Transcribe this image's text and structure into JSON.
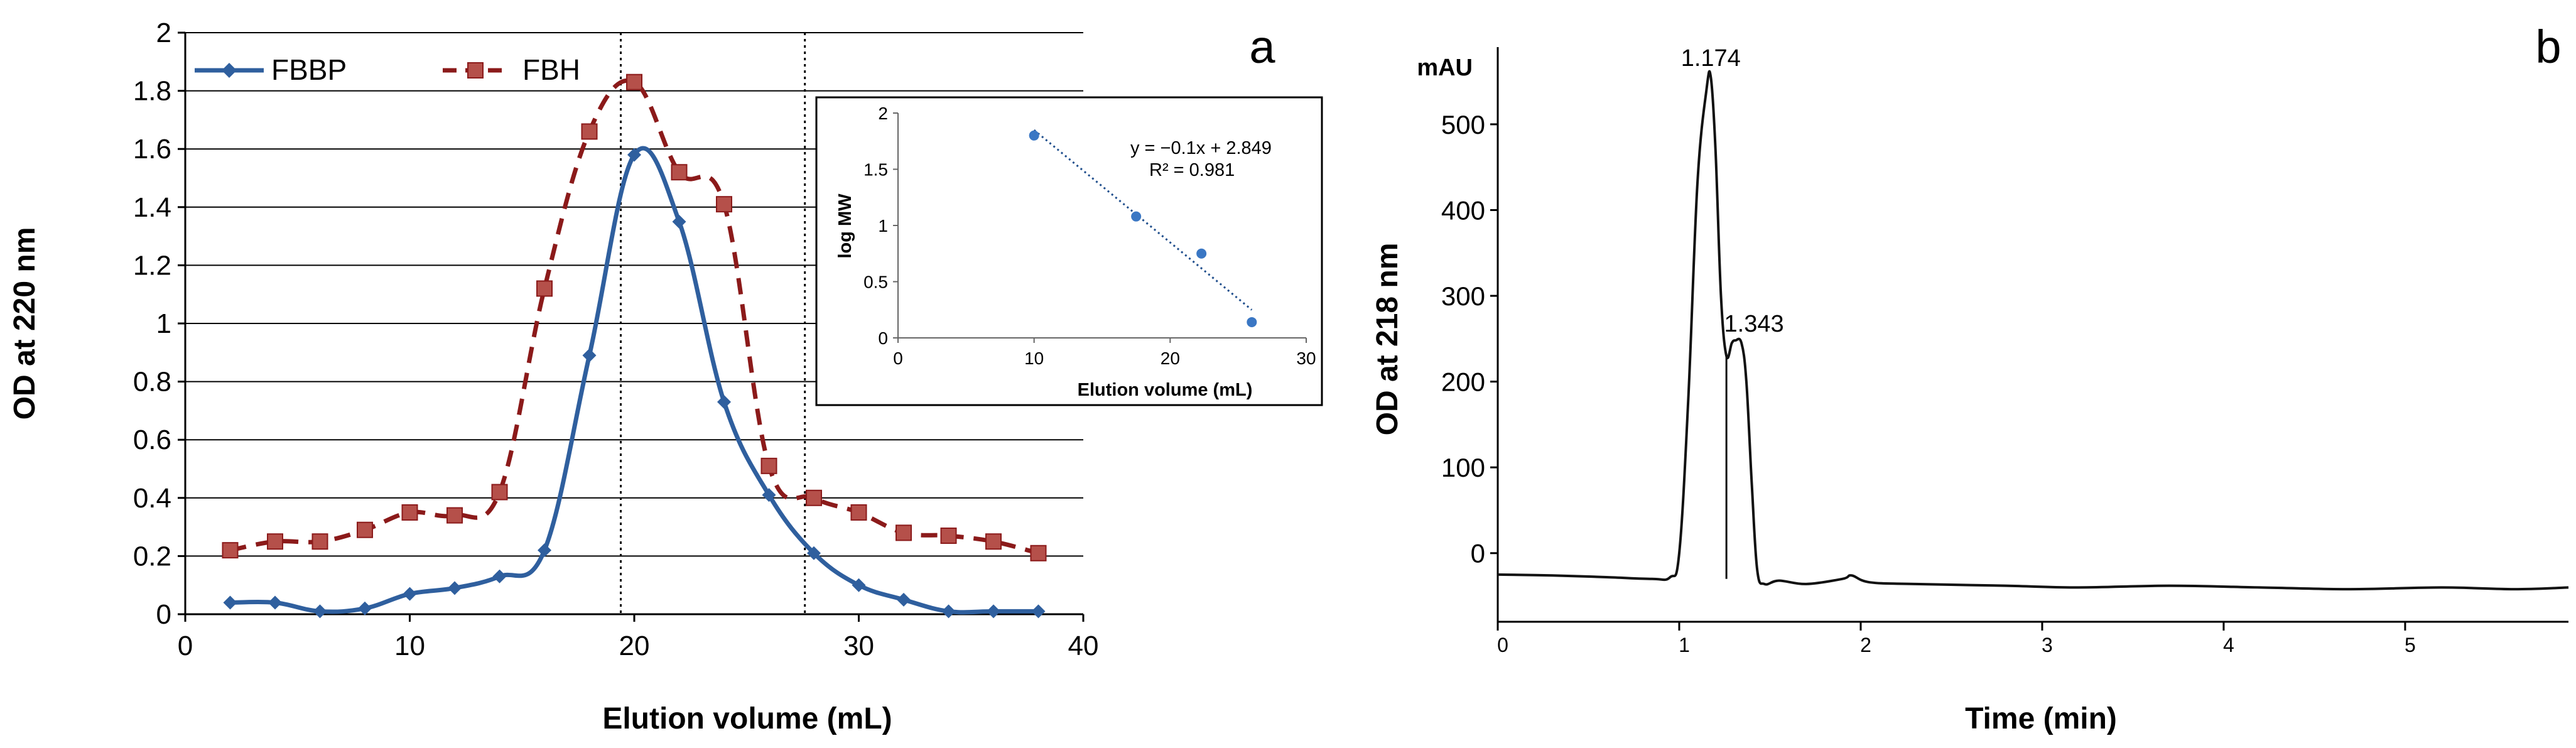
{
  "panels": {
    "a": {
      "label": "a"
    },
    "b": {
      "label": "b"
    }
  },
  "colors": {
    "fbbp": "#2F5F9E",
    "fbh": "#8B1A1A",
    "fbh_marker": "#B5504A",
    "inset_points": "#3A77C4",
    "axis": "#000000",
    "grid": "#000000"
  },
  "chart_data": [
    {
      "id": "panel-a-main",
      "type": "line",
      "title": "",
      "xlabel": "Elution volume (mL)",
      "ylabel": "OD at 220 nm",
      "xlim": [
        0,
        40
      ],
      "ylim": [
        0,
        2
      ],
      "x_ticks": [
        0,
        10,
        20,
        30,
        40
      ],
      "y_ticks": [
        0,
        0.2,
        0.4,
        0.6,
        0.8,
        1,
        1.2,
        1.4,
        1.6,
        1.8,
        2
      ],
      "grid": "horizontal",
      "legend": "top-left",
      "vertical_markers": [
        19.4,
        27.6
      ],
      "series": [
        {
          "name": "FBBP",
          "color_key": "fbbp",
          "marker": "diamond",
          "line": "solid",
          "x": [
            2,
            4,
            6,
            8,
            10,
            12,
            14,
            16,
            18,
            20,
            22,
            24,
            26,
            28,
            30,
            32,
            34,
            36,
            38
          ],
          "y": [
            0.04,
            0.04,
            0.01,
            0.02,
            0.07,
            0.09,
            0.13,
            0.22,
            0.89,
            1.58,
            1.35,
            0.73,
            0.41,
            0.21,
            0.1,
            0.05,
            0.01,
            0.01,
            0.01
          ]
        },
        {
          "name": "FBH",
          "color_key": "fbh",
          "marker": "square",
          "line": "dashed",
          "x": [
            2,
            4,
            6,
            8,
            10,
            12,
            14,
            16,
            18,
            20,
            22,
            24,
            26,
            28,
            30,
            32,
            34,
            36,
            38
          ],
          "y": [
            0.22,
            0.25,
            0.25,
            0.29,
            0.35,
            0.34,
            0.42,
            1.12,
            1.66,
            1.83,
            1.52,
            1.41,
            0.51,
            0.4,
            0.35,
            0.28,
            0.27,
            0.25,
            0.21
          ]
        }
      ]
    },
    {
      "id": "panel-a-inset",
      "type": "scatter",
      "title": "",
      "xlabel": "Elution volume (mL)",
      "ylabel": "log MW",
      "xlim": [
        0,
        30
      ],
      "ylim": [
        0,
        2
      ],
      "x_ticks": [
        0,
        10,
        20,
        30
      ],
      "y_ticks": [
        0,
        0.5,
        1,
        1.5,
        2
      ],
      "points": {
        "x": [
          10,
          17.5,
          22.3,
          26
        ],
        "y": [
          1.8,
          1.08,
          0.75,
          0.14
        ]
      },
      "trendline": {
        "slope": -0.1,
        "intercept": 2.849,
        "x_range": [
          10,
          26
        ],
        "style": "dotted"
      },
      "equation_text": "y = −0.1x + 2.849",
      "r2_text": "R² = 0.981"
    },
    {
      "id": "panel-b",
      "type": "line",
      "title": "",
      "xlabel": "Time (min)",
      "ylabel": "OD at 218 nm",
      "unit_label": "mAU",
      "xlim": [
        0,
        5.9
      ],
      "ylim": [
        -80,
        590
      ],
      "x_ticks": [
        0,
        1,
        2,
        3,
        4,
        5
      ],
      "y_ticks": [
        0,
        100,
        200,
        300,
        400,
        500
      ],
      "baseline_y": -80,
      "peak_labels": [
        {
          "text": "1.174",
          "x": 1.174,
          "y": 555
        },
        {
          "text": "1.343",
          "x": 1.343,
          "y": 245
        }
      ],
      "split_line_x": 1.26,
      "series": [
        {
          "name": "trace",
          "x": [
            0,
            0.3,
            0.6,
            0.85,
            0.95,
            1.0,
            1.05,
            1.1,
            1.15,
            1.174,
            1.2,
            1.23,
            1.26,
            1.29,
            1.31,
            1.343,
            1.37,
            1.4,
            1.43,
            1.47,
            1.55,
            1.7,
            1.9,
            1.95,
            2.05,
            2.3,
            2.8,
            3.2,
            3.7,
            4.2,
            4.7,
            5.2,
            5.6,
            5.9
          ],
          "y": [
            -25,
            -26,
            -28,
            -30,
            -28,
            0,
            180,
            430,
            540,
            555,
            470,
            300,
            230,
            245,
            248,
            245,
            200,
            80,
            -20,
            -36,
            -32,
            -36,
            -30,
            -26,
            -34,
            -36,
            -38,
            -40,
            -38,
            -40,
            -42,
            -40,
            -42,
            -40
          ]
        }
      ]
    }
  ]
}
